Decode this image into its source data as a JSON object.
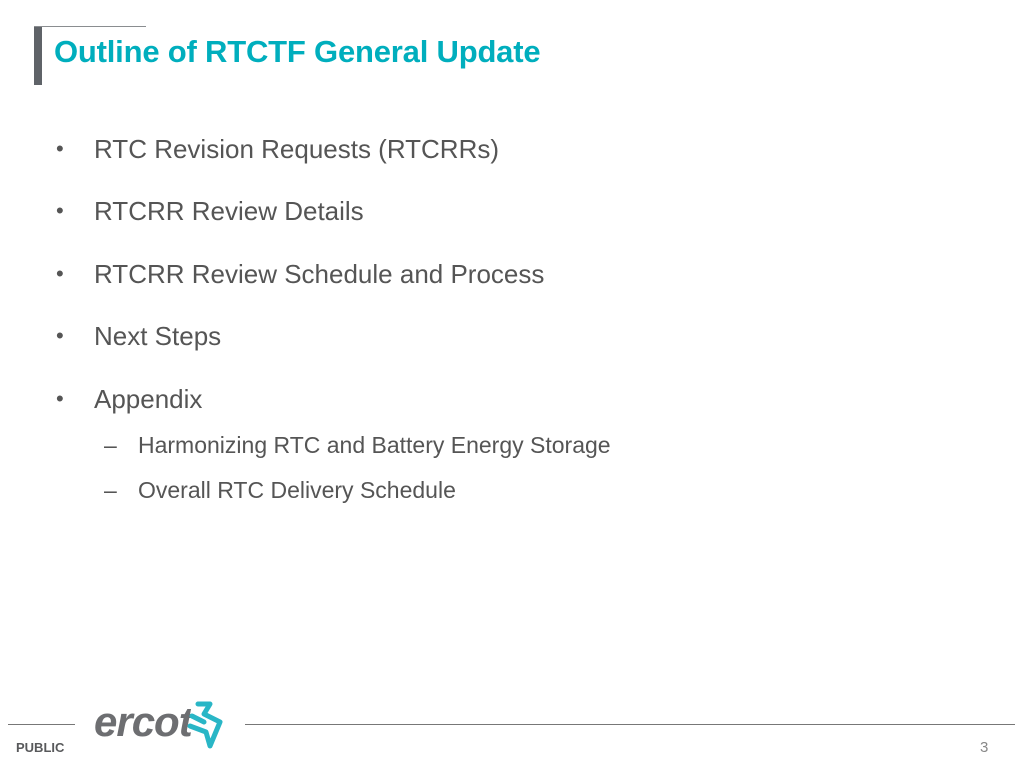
{
  "title": "Outline of RTCTF General Update",
  "bullets": [
    {
      "label": "RTC Revision Requests (RTCRRs)"
    },
    {
      "label": "RTCRR Review Details"
    },
    {
      "label": "RTCRR Review Schedule and Process"
    },
    {
      "label": "Next Steps"
    },
    {
      "label": "Appendix",
      "subitems": [
        "Harmonizing RTC and Battery Energy Storage",
        "Overall RTC Delivery Schedule"
      ]
    }
  ],
  "bullet_symbol": "•",
  "sub_symbol": "–",
  "footer": {
    "classification": "PUBLIC",
    "logo_text": "ercot",
    "page_number": "3"
  },
  "colors": {
    "title": "#00aebd",
    "logo_text": "#6d6e71",
    "logo_mark": "#29b6c6"
  }
}
